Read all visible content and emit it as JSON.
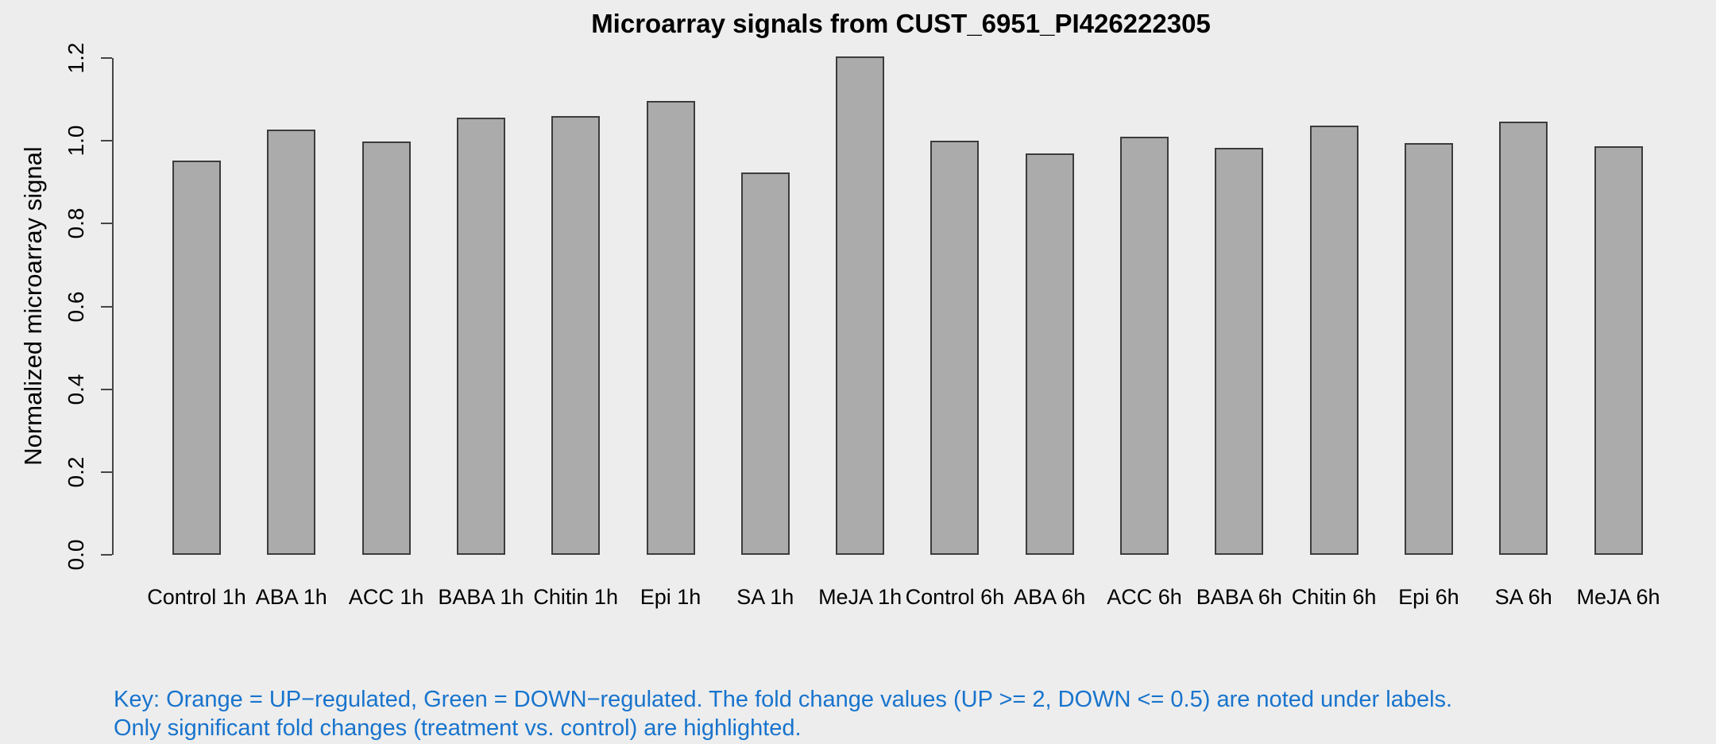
{
  "chart_data": {
    "type": "bar",
    "title": "Microarray signals from CUST_6951_PI426222305",
    "xlabel": "",
    "ylabel": "Normalized microarray signal",
    "categories": [
      "Control 1h",
      "ABA 1h",
      "ACC 1h",
      "BABA 1h",
      "Chitin 1h",
      "Epi 1h",
      "SA 1h",
      "MeJA 1h",
      "Control 6h",
      "ABA 6h",
      "ACC 6h",
      "BABA 6h",
      "Chitin 6h",
      "Epi 6h",
      "SA 6h",
      "MeJA 6h"
    ],
    "values": [
      0.953,
      1.028,
      0.998,
      1.056,
      1.059,
      1.096,
      0.924,
      1.203,
      1.0,
      0.969,
      1.01,
      0.983,
      1.037,
      0.994,
      1.046,
      0.986
    ],
    "ylim": [
      0.0,
      1.2
    ],
    "yticks": [
      "0.0",
      "0.2",
      "0.4",
      "0.6",
      "0.8",
      "1.0",
      "1.2"
    ],
    "grid": false,
    "legend_position": "none",
    "bar_fill_color": "#ABABAB",
    "bar_border_color": "#3C3C3C"
  },
  "key": {
    "line1": "Key: Orange = UP−regulated, Green = DOWN−regulated. The fold change values (UP >= 2, DOWN <= 0.5) are noted under labels.",
    "line2": "Only significant fold changes (treatment vs. control) are highlighted."
  },
  "colors": {
    "background": "#EDEDED",
    "bar_fill": "#ABABAB",
    "bar_border": "#3C3C3C",
    "axis": "#454545",
    "text": "#000000",
    "key_text": "#1874CD"
  }
}
